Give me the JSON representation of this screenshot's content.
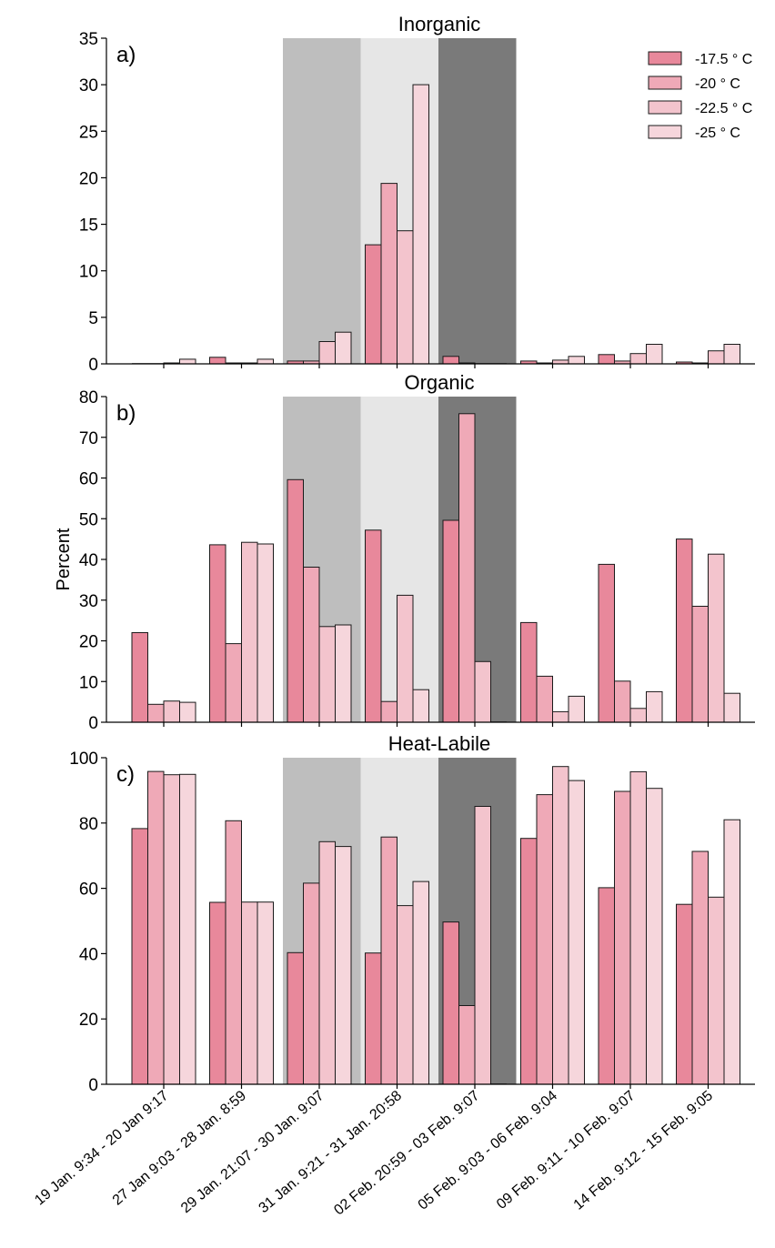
{
  "chart_data": {
    "type": "bar",
    "ylabel": "Percent",
    "categories": [
      "19 Jan. 9:34 - 20 Jan 9:17",
      "27 Jan 9:03 - 28 Jan. 8:59",
      "29 Jan. 21:07 - 30 Jan. 9:07",
      "31 Jan. 9:21 - 31 Jan. 20:58",
      "02 Feb. 20:59 - 03 Feb. 9:07",
      "05 Feb. 9:03 - 06 Feb. 9:04",
      "09 Feb. 9:11 - 10 Feb. 9:07",
      "14 Feb. 9:12 - 15 Feb. 9:05"
    ],
    "legend": {
      "position": "top-right",
      "entries": [
        "-17.5 ° C",
        "-20 ° C",
        "-22.5 ° C",
        "-25 ° C"
      ]
    },
    "series_colors": [
      "#e8889b",
      "#efa9b7",
      "#f3c4cd",
      "#f6d6dc"
    ],
    "shaded_categories": [
      {
        "index": 2,
        "color": "#bebebe"
      },
      {
        "index": 3,
        "color": "#e6e6e6"
      },
      {
        "index": 4,
        "color": "#7a7a7a"
      }
    ],
    "panels": [
      {
        "letter": "a)",
        "title": "Inorganic",
        "ylim": [
          0,
          35
        ],
        "yticks": [
          0,
          5,
          10,
          15,
          20,
          25,
          30,
          35
        ],
        "series": [
          {
            "name": "-17.5 ° C",
            "values": [
              0,
              0.7,
              0.3,
              12.8,
              0.8,
              0.3,
              1.0,
              0.2
            ]
          },
          {
            "name": "-20 ° C",
            "values": [
              0,
              0.1,
              0.3,
              19.4,
              0.1,
              0.1,
              0.3,
              0.1
            ]
          },
          {
            "name": "-22.5 ° C",
            "values": [
              0.1,
              0.1,
              2.4,
              14.3,
              0.0,
              0.4,
              1.1,
              1.4
            ]
          },
          {
            "name": "-25 ° C",
            "values": [
              0.5,
              0.5,
              3.4,
              30.0,
              0.0,
              0.8,
              2.1,
              2.1
            ]
          }
        ]
      },
      {
        "letter": "b)",
        "title": "Organic",
        "ylim": [
          0,
          80
        ],
        "yticks": [
          0,
          10,
          20,
          30,
          40,
          50,
          60,
          70,
          80
        ],
        "series": [
          {
            "name": "-17.5 ° C",
            "values": [
              22,
              43.6,
              59.6,
              47.2,
              49.6,
              24.5,
              38.8,
              45
            ]
          },
          {
            "name": "-20 ° C",
            "values": [
              4.4,
              19.3,
              38.1,
              5.1,
              75.8,
              11.3,
              10.1,
              28.5
            ]
          },
          {
            "name": "-22.5 ° C",
            "values": [
              5.2,
              44.2,
              23.5,
              31.2,
              14.9,
              2.6,
              3.4,
              41.3
            ]
          },
          {
            "name": "-25 ° C",
            "values": [
              4.9,
              43.8,
              23.9,
              8.0,
              0,
              6.4,
              7.5,
              7.1
            ]
          }
        ]
      },
      {
        "letter": "c)",
        "title": "Heat-Labile",
        "ylim": [
          0,
          100
        ],
        "yticks": [
          0,
          20,
          40,
          60,
          80,
          100
        ],
        "series": [
          {
            "name": "-17.5 ° C",
            "values": [
              78.3,
              55.7,
              40.3,
              40.2,
              49.7,
              75.3,
              60.2,
              55.1
            ]
          },
          {
            "name": "-20 ° C",
            "values": [
              95.8,
              80.7,
              61.6,
              75.7,
              24.1,
              88.7,
              89.7,
              71.3
            ]
          },
          {
            "name": "-22.5 ° C",
            "values": [
              94.8,
              55.8,
              74.3,
              54.7,
              85.1,
              97.3,
              95.7,
              57.3
            ]
          },
          {
            "name": "-25 ° C",
            "values": [
              94.9,
              55.8,
              72.8,
              62.1,
              0,
              93.0,
              90.6,
              81.0
            ]
          }
        ]
      }
    ]
  }
}
